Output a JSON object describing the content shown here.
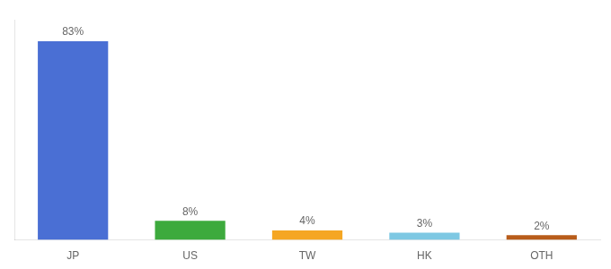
{
  "chart_data": {
    "type": "bar",
    "categories": [
      "JP",
      "US",
      "TW",
      "HK",
      "OTH"
    ],
    "values": [
      83,
      8,
      4,
      3,
      2
    ],
    "value_labels": [
      "83%",
      "8%",
      "4%",
      "3%",
      "2%"
    ],
    "colors": [
      "#4A6FD4",
      "#3DAA3D",
      "#F5A623",
      "#7EC8E3",
      "#B85C1A"
    ],
    "ylim": [
      0,
      92
    ],
    "grid": false,
    "data_labels": true,
    "tick_labels": "x"
  }
}
